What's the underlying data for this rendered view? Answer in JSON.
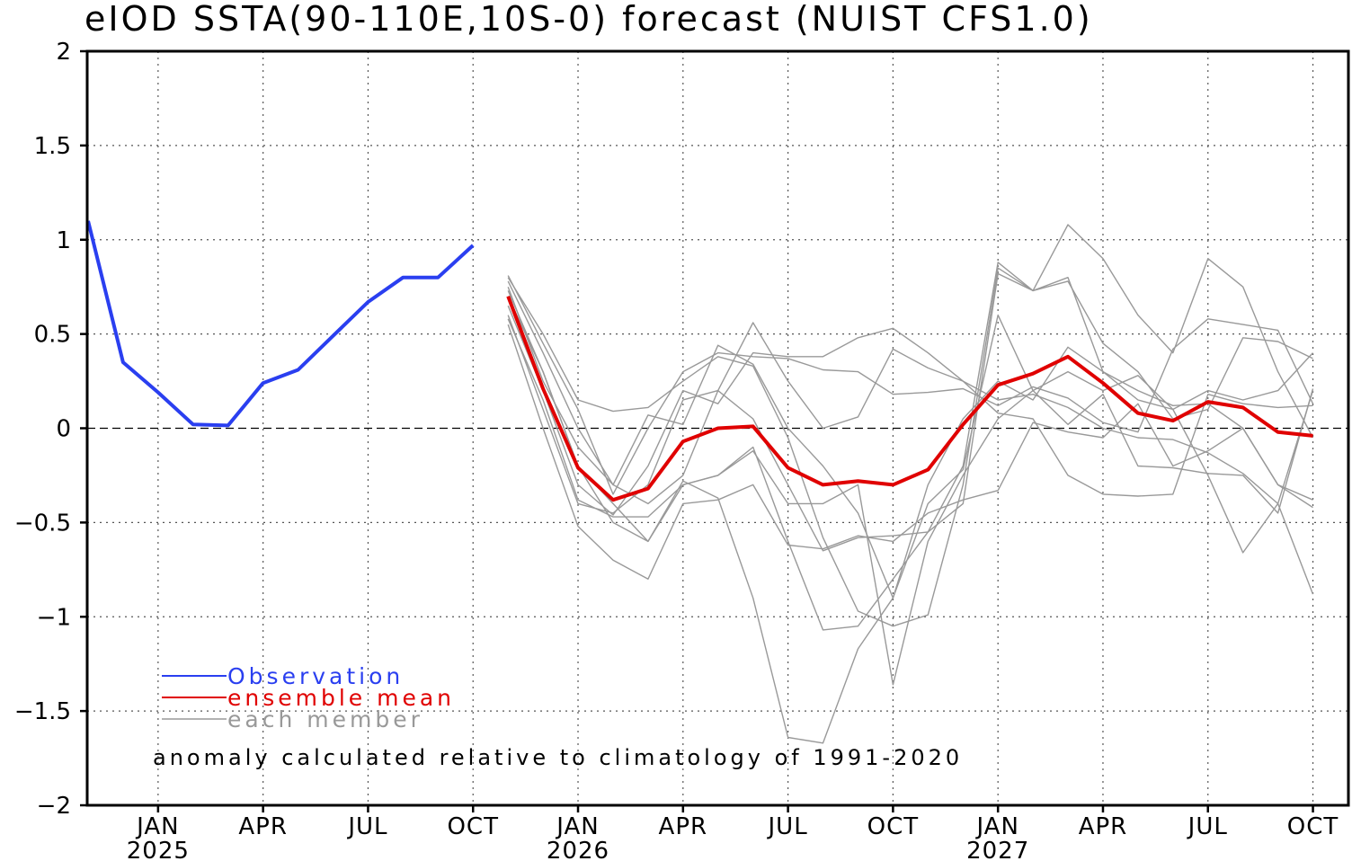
{
  "chart_data": {
    "type": "line",
    "title": "eIOD SSTA(90-110E,10S-0) forecast (NUIST CFS1.0)",
    "ylim": [
      -2,
      2
    ],
    "y_ticks": [
      "2",
      "1.5",
      "1",
      "0.5",
      "0",
      "-0.5",
      "-1",
      "-1.5",
      "-2"
    ],
    "x_ticks": [
      {
        "month": 2,
        "label": "JAN",
        "year": "2025"
      },
      {
        "month": 5,
        "label": "APR",
        "year": ""
      },
      {
        "month": 8,
        "label": "JUL",
        "year": ""
      },
      {
        "month": 11,
        "label": "OCT",
        "year": ""
      },
      {
        "month": 14,
        "label": "JAN",
        "year": "2026"
      },
      {
        "month": 17,
        "label": "APR",
        "year": ""
      },
      {
        "month": 20,
        "label": "JUL",
        "year": ""
      },
      {
        "month": 23,
        "label": "OCT",
        "year": ""
      },
      {
        "month": 26,
        "label": "JAN",
        "year": "2027"
      },
      {
        "month": 29,
        "label": "APR",
        "year": ""
      },
      {
        "month": 32,
        "label": "JUL",
        "year": ""
      },
      {
        "month": 35,
        "label": "OCT",
        "year": ""
      }
    ],
    "series": [
      {
        "name": "Observation",
        "color": "#2a3ff0",
        "start_month": 0,
        "values": [
          1.1,
          0.35,
          0.19,
          0.02,
          0.015,
          0.24,
          0.31,
          0.49,
          0.67,
          0.8,
          0.8,
          0.97
        ]
      },
      {
        "name": "ensemble mean",
        "color": "#e00000",
        "start_month": 12,
        "values": [
          0.7,
          0.21,
          -0.21,
          -0.38,
          -0.32,
          -0.07,
          0.0,
          0.01,
          -0.21,
          -0.3,
          -0.28,
          -0.3,
          -0.22,
          0.02,
          0.23,
          0.29,
          0.38,
          0.24,
          0.08,
          0.04,
          0.14,
          0.11,
          -0.02,
          -0.04
        ]
      }
    ],
    "members": {
      "name": "each member",
      "color": "#999999",
      "start_month": 12,
      "lines": [
        [
          0.8,
          0.5,
          0.15,
          0.09,
          0.11,
          0.25,
          0.38,
          0.33,
          -0.05,
          -0.58,
          -0.97,
          -1.05,
          -0.99,
          -0.3,
          0.85,
          0.73,
          0.8,
          0.3,
          0.15,
          0.1,
          0.2,
          0.15,
          0.2,
          0.4
        ],
        [
          0.7,
          0.3,
          -0.2,
          -0.5,
          -0.6,
          -0.3,
          -0.25,
          -0.1,
          -0.6,
          -1.07,
          -1.05,
          -0.8,
          -0.55,
          -0.2,
          0.88,
          0.73,
          1.08,
          0.9,
          0.6,
          0.4,
          0.9,
          0.75,
          0.3,
          -0.05
        ],
        [
          0.6,
          0.1,
          -0.4,
          -0.45,
          -0.3,
          0.15,
          0.2,
          0.05,
          -0.3,
          -0.65,
          -0.58,
          -0.57,
          -0.55,
          -0.4,
          0.82,
          0.73,
          0.78,
          0.45,
          0.3,
          0.05,
          0.1,
          0.48,
          0.46,
          0.37
        ],
        [
          0.75,
          0.25,
          -0.1,
          -0.3,
          0.07,
          0.02,
          0.44,
          0.34,
          0.0,
          -0.2,
          -0.45,
          -0.9,
          -0.3,
          0.05,
          0.25,
          0.15,
          0.43,
          0.3,
          0.2,
          0.12,
          0.13,
          0.0,
          -0.3,
          -0.42
        ],
        [
          0.65,
          0.2,
          -0.3,
          -0.46,
          -0.2,
          0.2,
          0.13,
          0.4,
          0.38,
          0.38,
          0.48,
          0.53,
          0.4,
          0.25,
          0.15,
          0.18,
          0.11,
          0.0,
          -0.05,
          -0.06,
          -0.13,
          -0.24,
          -0.4,
          -0.88
        ],
        [
          0.58,
          0.15,
          -0.38,
          -0.47,
          -0.47,
          -0.3,
          -0.25,
          -0.12,
          -0.4,
          -0.4,
          -0.3,
          -1.36,
          -0.6,
          -0.25,
          0.05,
          0.2,
          0.02,
          0.18,
          -0.2,
          -0.21,
          -0.24,
          -0.25,
          -0.45,
          0.21
        ],
        [
          0.78,
          0.4,
          0.0,
          -0.3,
          -0.4,
          -0.25,
          0.2,
          0.56,
          0.25,
          0.0,
          0.06,
          0.42,
          0.32,
          0.25,
          0.08,
          0.05,
          -0.25,
          -0.35,
          -0.36,
          -0.35,
          0.18,
          0.13,
          0.11,
          0.12
        ],
        [
          0.55,
          0.0,
          -0.52,
          -0.7,
          -0.8,
          -0.4,
          -0.38,
          -0.3,
          -0.62,
          -0.64,
          -0.57,
          -0.6,
          -0.45,
          -0.38,
          -0.33,
          0.03,
          -0.02,
          -0.05,
          0.13,
          -0.2,
          -0.12,
          0.0,
          -0.3,
          -0.38
        ],
        [
          0.73,
          0.3,
          -0.2,
          -0.4,
          -0.6,
          -0.28,
          -0.37,
          -0.9,
          -1.64,
          -1.67,
          -1.17,
          -0.9,
          -0.4,
          -0.22,
          0.6,
          0.2,
          0.3,
          0.2,
          0.28,
          0.1,
          -0.25,
          -0.66,
          -0.4,
          0.2
        ],
        [
          0.81,
          0.45,
          0.1,
          -0.35,
          0.0,
          0.3,
          0.4,
          0.38,
          0.37,
          0.31,
          0.3,
          0.18,
          0.19,
          0.21,
          0.12,
          0.22,
          0.16,
          0.03,
          -0.02,
          0.42,
          0.58,
          0.55,
          0.52,
          0.13
        ]
      ]
    },
    "zero_line": true,
    "grid": true,
    "legend": {
      "placement": "bottom-left",
      "entries": [
        {
          "label": "Observation",
          "color": "#2a3ff0"
        },
        {
          "label": "ensemble mean",
          "color": "#e00000"
        },
        {
          "label": "each member",
          "color": "#999999"
        }
      ]
    },
    "annotation": "anomaly calculated relative to climatology of 1991-2020"
  }
}
